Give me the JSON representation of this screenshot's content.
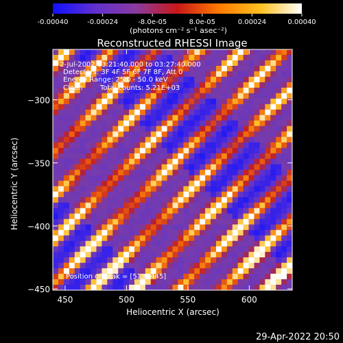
{
  "colorbar": {
    "ticks": [
      "-0.00040",
      "-0.00024",
      "-8.0e-05",
      "8.0e-05",
      "0.00024",
      "0.00040"
    ],
    "min": -0.0004,
    "max": 0.0004,
    "unit_label": "(photons cm⁻² s⁻¹ asec⁻²)",
    "colors": [
      "#1010ff",
      "#6030d0",
      "#8a3aa0",
      "#c81818",
      "#ff7a00",
      "#ffc020",
      "#ffffff"
    ]
  },
  "chart_data": {
    "type": "heatmap",
    "title": "Reconstructed RHESSI Image",
    "xlabel": "Heliocentric X (arcsec)",
    "ylabel": "Heliocentric Y (arcsec)",
    "xlim": [
      440,
      635
    ],
    "ylim": [
      -451,
      -260
    ],
    "xticks": [
      450,
      500,
      550,
      600
    ],
    "yticks": [
      -300,
      -350,
      -400,
      -450
    ],
    "annotations": {
      "time_range": "2-Jul-2002 03:21:40.000 to 03:27:40.000",
      "detectors": "Detectors: 3F 4F 5F 6F 7F 8F, Att 0",
      "energy": "Energy Range: 25.0 - 50.0 keV",
      "method": "Clean",
      "total_counts": "Total counts: 5.21E+03",
      "peak": "Position of Peak = [513,-445]"
    },
    "peak_position": [
      513,
      -445
    ]
  },
  "footer": {
    "timestamp": "29-Apr-2022 20:50"
  }
}
